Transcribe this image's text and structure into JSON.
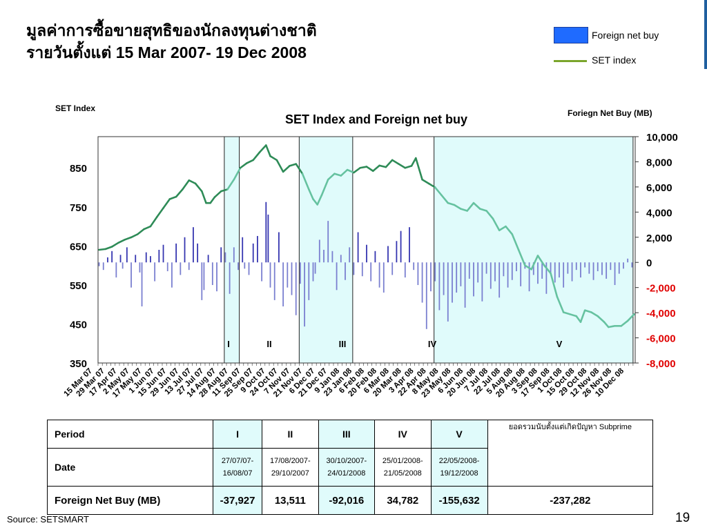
{
  "header": {
    "title_line1": "มูลค่าการซื้อขายสุทธิของนักลงทุนต่างชาติ",
    "title_line2": "รายวันตั้งแต่ 15 Mar 2007- 19 Dec 2008"
  },
  "legend": {
    "bar_label": "Foreign net buy",
    "line_label": "SET index"
  },
  "colors": {
    "bar": "#3535b0",
    "bar_neg": "#7a7fd0",
    "line_dark": "#2e8b57",
    "line_light": "#66c2a0",
    "highlight": "#e0fbfb",
    "negative_axis": "#e00000",
    "legend_bar": "#1f6bff",
    "legend_line": "#7aa52b"
  },
  "chart_data": {
    "type": "bar+line",
    "title": "SET Index and Foreign net buy",
    "ylabel_left": "SET Index",
    "ylabel_right": "Foriegn Net Buy (MB)",
    "y_left_ticks": [
      "850",
      "750",
      "650",
      "550",
      "450",
      "350"
    ],
    "y_left_values": [
      850,
      750,
      650,
      550,
      450,
      350
    ],
    "ylim_left": [
      350,
      930
    ],
    "y_right_ticks": [
      "10,000",
      "8,000",
      "6,000",
      "4,000",
      "2,000",
      "0",
      "-2,000",
      "-4,000",
      "-6,000",
      "-8,000"
    ],
    "y_right_values": [
      10000,
      8000,
      6000,
      4000,
      2000,
      0,
      -2000,
      -4000,
      -6000,
      -8000
    ],
    "ylim_right": [
      -8000,
      10000
    ],
    "x_tick_labels": [
      "15 Mar 07",
      "29 Mar 07",
      "17 Apr 07",
      "2 May 07",
      "17 May 07",
      "1 Jun 07",
      "15 Jun 07",
      "29 Jun 07",
      "13 Jul 07",
      "27 Jul 07",
      "14 Aug 07",
      "28 Aug 07",
      "11 Sep 07",
      "25 Sep 07",
      "9 Oct 07",
      "24 Oct 07",
      "7 Nov 07",
      "21 Nov 07",
      "6 Dec 07",
      "21 Dec 07",
      "9 Jan 08",
      "23 Jan 08",
      "6 Feb 08",
      "20 Feb 08",
      "6 Mar 08",
      "20 Mar 08",
      "3 Apr 08",
      "22 Apr 08",
      "8 May 08",
      "23 May 08",
      "6 Jun 08",
      "20 Jun 08",
      "7 Jul 08",
      "22 Jul 08",
      "5 Aug 08",
      "20 Aug 08",
      "3 Sep 08",
      "17 Sep 08",
      "1 Oct 08",
      "15 Oct 08",
      "29 Oct 08",
      "12 Nov 08",
      "26 Nov 08",
      "10 Dec 08"
    ],
    "period_labels": [
      "I",
      "II",
      "III",
      "IV",
      "V"
    ],
    "set_index_series": [
      [
        0,
        640
      ],
      [
        3,
        642
      ],
      [
        6,
        648
      ],
      [
        9,
        658
      ],
      [
        12,
        666
      ],
      [
        15,
        672
      ],
      [
        18,
        680
      ],
      [
        21,
        693
      ],
      [
        24,
        700
      ],
      [
        27,
        724
      ],
      [
        30,
        747
      ],
      [
        33,
        770
      ],
      [
        36,
        776
      ],
      [
        39,
        795
      ],
      [
        42,
        818
      ],
      [
        45,
        810
      ],
      [
        48,
        790
      ],
      [
        50,
        760
      ],
      [
        52,
        760
      ],
      [
        54,
        775
      ],
      [
        57,
        790
      ],
      [
        60,
        795
      ],
      [
        63,
        820
      ],
      [
        66,
        850
      ],
      [
        69,
        862
      ],
      [
        72,
        870
      ],
      [
        75,
        890
      ],
      [
        78,
        908
      ],
      [
        80,
        880
      ],
      [
        83,
        870
      ],
      [
        86,
        840
      ],
      [
        89,
        855
      ],
      [
        92,
        860
      ],
      [
        95,
        835
      ],
      [
        98,
        795
      ],
      [
        100,
        770
      ],
      [
        102,
        756
      ],
      [
        104,
        780
      ],
      [
        107,
        820
      ],
      [
        110,
        835
      ],
      [
        113,
        830
      ],
      [
        116,
        845
      ],
      [
        119,
        838
      ],
      [
        122,
        850
      ],
      [
        125,
        853
      ],
      [
        128,
        842
      ],
      [
        131,
        856
      ],
      [
        134,
        852
      ],
      [
        137,
        870
      ],
      [
        140,
        860
      ],
      [
        143,
        850
      ],
      [
        146,
        855
      ],
      [
        148,
        875
      ],
      [
        151,
        820
      ],
      [
        154,
        810
      ],
      [
        157,
        800
      ],
      [
        160,
        780
      ],
      [
        163,
        760
      ],
      [
        166,
        755
      ],
      [
        169,
        745
      ],
      [
        172,
        740
      ],
      [
        175,
        760
      ],
      [
        178,
        745
      ],
      [
        181,
        740
      ],
      [
        184,
        720
      ],
      [
        187,
        690
      ],
      [
        190,
        700
      ],
      [
        193,
        680
      ],
      [
        196,
        640
      ],
      [
        199,
        600
      ],
      [
        202,
        590
      ],
      [
        205,
        625
      ],
      [
        208,
        600
      ],
      [
        211,
        580
      ],
      [
        214,
        520
      ],
      [
        217,
        480
      ],
      [
        220,
        475
      ],
      [
        223,
        470
      ],
      [
        225,
        455
      ],
      [
        227,
        485
      ],
      [
        230,
        480
      ],
      [
        233,
        470
      ],
      [
        236,
        455
      ],
      [
        238,
        442
      ],
      [
        241,
        445
      ],
      [
        244,
        445
      ],
      [
        247,
        458
      ],
      [
        250,
        475
      ]
    ],
    "foreign_net_buy_bars": [
      [
        0,
        -300
      ],
      [
        2,
        -600
      ],
      [
        4,
        400
      ],
      [
        6,
        900
      ],
      [
        8,
        -1200
      ],
      [
        10,
        600
      ],
      [
        11,
        -500
      ],
      [
        13,
        1200
      ],
      [
        15,
        -2000
      ],
      [
        17,
        600
      ],
      [
        19,
        -800
      ],
      [
        20,
        -3500
      ],
      [
        22,
        800
      ],
      [
        24,
        500
      ],
      [
        26,
        -1500
      ],
      [
        28,
        1000
      ],
      [
        30,
        1400
      ],
      [
        32,
        -700
      ],
      [
        34,
        -2000
      ],
      [
        36,
        1500
      ],
      [
        38,
        -1000
      ],
      [
        40,
        2000
      ],
      [
        42,
        -600
      ],
      [
        44,
        2800
      ],
      [
        46,
        1500
      ],
      [
        48,
        -3000
      ],
      [
        49,
        -2200
      ],
      [
        51,
        600
      ],
      [
        53,
        -1800
      ],
      [
        55,
        -2300
      ],
      [
        57,
        1200
      ],
      [
        59,
        800
      ],
      [
        61,
        -2500
      ],
      [
        63,
        1200
      ],
      [
        65,
        -600
      ],
      [
        67,
        2000
      ],
      [
        68,
        -500
      ],
      [
        70,
        -1000
      ],
      [
        72,
        1500
      ],
      [
        74,
        2100
      ],
      [
        76,
        -1500
      ],
      [
        78,
        4800
      ],
      [
        79,
        3800
      ],
      [
        80,
        -2000
      ],
      [
        82,
        -3000
      ],
      [
        84,
        2400
      ],
      [
        86,
        -3500
      ],
      [
        88,
        -2000
      ],
      [
        90,
        -2600
      ],
      [
        92,
        -4200
      ],
      [
        94,
        -1700
      ],
      [
        96,
        -5100
      ],
      [
        98,
        -3000
      ],
      [
        100,
        -1500
      ],
      [
        101,
        -900
      ],
      [
        103,
        1800
      ],
      [
        105,
        1000
      ],
      [
        107,
        3300
      ],
      [
        109,
        900
      ],
      [
        111,
        -2200
      ],
      [
        113,
        600
      ],
      [
        115,
        -1400
      ],
      [
        117,
        1200
      ],
      [
        119,
        -1000
      ],
      [
        121,
        2400
      ],
      [
        123,
        -1100
      ],
      [
        125,
        1400
      ],
      [
        127,
        -1500
      ],
      [
        129,
        900
      ],
      [
        131,
        -2000
      ],
      [
        133,
        -2400
      ],
      [
        135,
        1300
      ],
      [
        137,
        -1000
      ],
      [
        139,
        1700
      ],
      [
        141,
        2500
      ],
      [
        143,
        -1200
      ],
      [
        145,
        2800
      ],
      [
        147,
        -600
      ],
      [
        149,
        -1800
      ],
      [
        151,
        -3200
      ],
      [
        153,
        -5300
      ],
      [
        155,
        -2300
      ],
      [
        157,
        -1500
      ],
      [
        159,
        -3800
      ],
      [
        161,
        -2600
      ],
      [
        163,
        -4700
      ],
      [
        165,
        -3200
      ],
      [
        167,
        -2400
      ],
      [
        169,
        -1900
      ],
      [
        171,
        -3600
      ],
      [
        173,
        -1300
      ],
      [
        175,
        -2700
      ],
      [
        177,
        -1600
      ],
      [
        179,
        -3100
      ],
      [
        181,
        -900
      ],
      [
        183,
        -2100
      ],
      [
        185,
        -1500
      ],
      [
        187,
        -2800
      ],
      [
        189,
        -1100
      ],
      [
        191,
        -2000
      ],
      [
        193,
        -1400
      ],
      [
        195,
        -700
      ],
      [
        197,
        -1900
      ],
      [
        199,
        -500
      ],
      [
        201,
        -2300
      ],
      [
        203,
        -1000
      ],
      [
        205,
        -1700
      ],
      [
        207,
        -1300
      ],
      [
        209,
        -2500
      ],
      [
        211,
        -800
      ],
      [
        213,
        -1600
      ],
      [
        215,
        -1200
      ],
      [
        217,
        -2000
      ],
      [
        219,
        -900
      ],
      [
        221,
        -1500
      ],
      [
        223,
        -600
      ],
      [
        225,
        -1200
      ],
      [
        227,
        -400
      ],
      [
        229,
        -900
      ],
      [
        231,
        -1400
      ],
      [
        233,
        -700
      ],
      [
        235,
        -1000
      ],
      [
        237,
        -1300
      ],
      [
        239,
        -600
      ],
      [
        241,
        -1800
      ],
      [
        243,
        -900
      ],
      [
        245,
        -500
      ],
      [
        247,
        300
      ],
      [
        249,
        -400
      ]
    ],
    "period_ranges": [
      [
        59,
        66
      ],
      [
        94,
        119
      ],
      [
        157,
        250
      ]
    ],
    "x_count": 251
  },
  "table": {
    "col_header": "Period",
    "periods": [
      "I",
      "II",
      "III",
      "IV",
      "V"
    ],
    "note": "ยอดรวมนับตั้งแต่เกิดปัญหา Subprime",
    "date_label": "Date",
    "dates": [
      [
        "27/07/07-",
        "16/08/07"
      ],
      [
        "17/08/2007-",
        "29/10/2007"
      ],
      [
        "30/10/2007-",
        "24/01/2008"
      ],
      [
        "25/01/2008-",
        "21/05/2008"
      ],
      [
        "22/05/2008-",
        "19/12/2008"
      ]
    ],
    "net_label": "Foreign Net Buy (MB)",
    "net_values": [
      "-37,927",
      "13,511",
      "-92,016",
      "34,782",
      "-155,632",
      "-237,282"
    ]
  },
  "footer": {
    "source": "Source: SETSMART",
    "page_number": "19"
  }
}
